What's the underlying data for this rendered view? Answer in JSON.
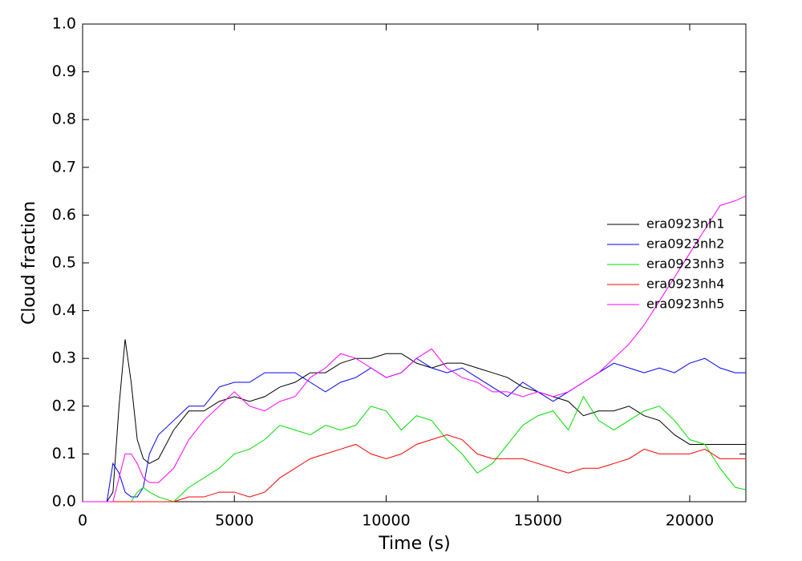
{
  "chart_data": {
    "type": "line",
    "x_label": "Time (s)",
    "y_label": "Cloud fraction",
    "x": [
      0,
      500,
      800,
      1000,
      1200,
      1400,
      1600,
      1800,
      2000,
      2200,
      2500,
      3000,
      3500,
      4000,
      4500,
      5000,
      5500,
      6000,
      6500,
      7000,
      7500,
      8000,
      8500,
      9000,
      9500,
      10000,
      10500,
      11000,
      11500,
      12000,
      12500,
      13000,
      13500,
      14000,
      14500,
      15000,
      15500,
      16000,
      16500,
      17000,
      17500,
      18000,
      18500,
      19000,
      19500,
      20000,
      20500,
      21000,
      21500,
      21850
    ],
    "series": [
      {
        "name": "era0923nh1",
        "color": "#000000",
        "values": [
          0,
          0,
          0,
          0.02,
          0.2,
          0.34,
          0.25,
          0.13,
          0.09,
          0.08,
          0.09,
          0.15,
          0.19,
          0.19,
          0.21,
          0.22,
          0.21,
          0.22,
          0.24,
          0.25,
          0.27,
          0.27,
          0.29,
          0.3,
          0.3,
          0.31,
          0.31,
          0.29,
          0.28,
          0.29,
          0.29,
          0.28,
          0.27,
          0.26,
          0.24,
          0.23,
          0.22,
          0.21,
          0.18,
          0.19,
          0.19,
          0.2,
          0.18,
          0.17,
          0.14,
          0.12,
          0.12,
          0.12,
          0.12,
          0.12
        ]
      },
      {
        "name": "era0923nh2",
        "color": "#0000ff",
        "values": [
          0,
          0,
          0,
          0.08,
          0.06,
          0.02,
          0.01,
          0.01,
          0.03,
          0.1,
          0.14,
          0.17,
          0.2,
          0.2,
          0.24,
          0.25,
          0.25,
          0.27,
          0.27,
          0.27,
          0.25,
          0.23,
          0.25,
          0.26,
          0.28,
          0.26,
          0.27,
          0.3,
          0.28,
          0.27,
          0.28,
          0.26,
          0.24,
          0.22,
          0.25,
          0.23,
          0.21,
          0.23,
          0.25,
          0.27,
          0.29,
          0.28,
          0.27,
          0.28,
          0.27,
          0.29,
          0.3,
          0.28,
          0.27,
          0.27
        ]
      },
      {
        "name": "era0923nh3",
        "color": "#00e000",
        "values": [
          0,
          0,
          0,
          0,
          0,
          0,
          0,
          0.02,
          0.03,
          0.02,
          0.01,
          0,
          0.03,
          0.05,
          0.07,
          0.1,
          0.11,
          0.13,
          0.16,
          0.15,
          0.14,
          0.16,
          0.15,
          0.16,
          0.2,
          0.19,
          0.15,
          0.18,
          0.17,
          0.13,
          0.1,
          0.06,
          0.08,
          0.12,
          0.16,
          0.18,
          0.19,
          0.15,
          0.22,
          0.17,
          0.15,
          0.17,
          0.19,
          0.2,
          0.17,
          0.13,
          0.12,
          0.07,
          0.03,
          0.025
        ]
      },
      {
        "name": "era0923nh4",
        "color": "#ff0000",
        "values": [
          0,
          0,
          0,
          0,
          0,
          0,
          0,
          0,
          0,
          0,
          0,
          0,
          0.01,
          0.01,
          0.02,
          0.02,
          0.01,
          0.02,
          0.05,
          0.07,
          0.09,
          0.1,
          0.11,
          0.12,
          0.1,
          0.09,
          0.1,
          0.12,
          0.13,
          0.14,
          0.13,
          0.1,
          0.09,
          0.09,
          0.09,
          0.08,
          0.07,
          0.06,
          0.07,
          0.07,
          0.08,
          0.09,
          0.11,
          0.1,
          0.1,
          0.1,
          0.11,
          0.09,
          0.09,
          0.09
        ]
      },
      {
        "name": "era0923nh5",
        "color": "#ff00ff",
        "values": [
          0,
          0,
          0,
          0,
          0.05,
          0.1,
          0.1,
          0.08,
          0.05,
          0.04,
          0.04,
          0.07,
          0.13,
          0.17,
          0.2,
          0.23,
          0.2,
          0.19,
          0.21,
          0.22,
          0.26,
          0.28,
          0.31,
          0.3,
          0.28,
          0.26,
          0.27,
          0.3,
          0.32,
          0.28,
          0.26,
          0.25,
          0.23,
          0.23,
          0.22,
          0.23,
          0.22,
          0.23,
          0.25,
          0.27,
          0.3,
          0.33,
          0.37,
          0.42,
          0.47,
          0.52,
          0.57,
          0.62,
          0.63,
          0.64
        ]
      }
    ],
    "xlim": [
      0,
      21850
    ],
    "xticks": [
      0,
      5000,
      10000,
      15000,
      20000
    ],
    "ylim": [
      0,
      1
    ],
    "yticks": [
      {
        "value": 0,
        "label": "0.0"
      },
      0.1,
      0.2,
      0.3,
      0.4,
      0.5,
      0.6,
      0.7,
      0.8,
      0.9,
      {
        "value": 1,
        "label": "1.0"
      }
    ],
    "legend": "right",
    "grid": false
  }
}
